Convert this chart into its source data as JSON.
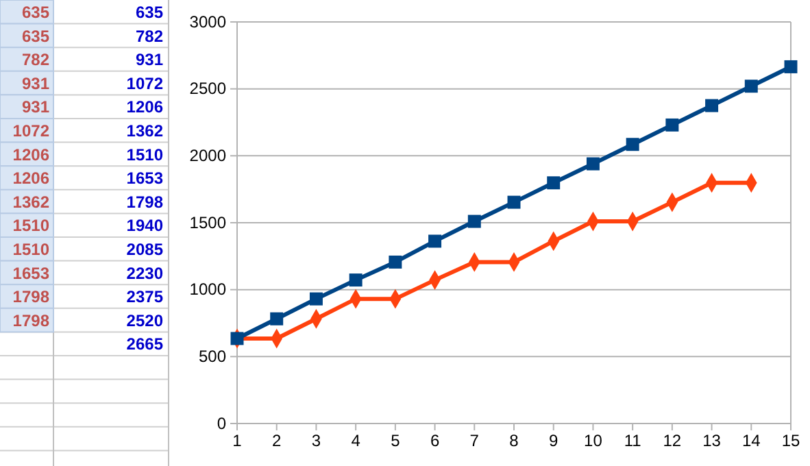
{
  "chart_data": [
    {
      "type": "other",
      "color": "#c0504d",
      "annotations": [
        "635",
        "635",
        "782",
        "931",
        "931",
        "1072",
        "1206",
        "1206",
        "1362",
        "1510",
        "1510",
        "1653",
        "1798",
        "1798"
      ]
    },
    {
      "type": "other",
      "color": "#0000cc",
      "annotations": [
        "635",
        "782",
        "931",
        "1072",
        "1206",
        "1362",
        "1510",
        "1653",
        "1798",
        "1940",
        "2085",
        "2230",
        "2375",
        "2520",
        "2665"
      ]
    },
    {
      "type": "line",
      "x": [
        1,
        2,
        3,
        4,
        5,
        6,
        7,
        8,
        9,
        10,
        11,
        12,
        13,
        14,
        15
      ],
      "series": [
        {
          "color": "#ff420e",
          "marker": "diamond",
          "values": [
            635,
            635,
            782,
            931,
            931,
            1072,
            1206,
            1206,
            1362,
            1510,
            1510,
            1653,
            1798,
            1798,
            null
          ]
        },
        {
          "color": "#004586",
          "marker": "square",
          "values": [
            635,
            782,
            931,
            1072,
            1206,
            1362,
            1510,
            1653,
            1798,
            1940,
            2085,
            2230,
            2375,
            2520,
            2665
          ]
        }
      ],
      "xlim": [
        1,
        15
      ],
      "xticks": [
        1,
        2,
        3,
        4,
        5,
        6,
        7,
        8,
        9,
        10,
        11,
        12,
        13,
        14,
        15
      ],
      "ylim": [
        0,
        3000
      ],
      "yticks": [
        0,
        500,
        1000,
        1500,
        2000,
        2500,
        3000
      ],
      "grid": "y"
    }
  ]
}
